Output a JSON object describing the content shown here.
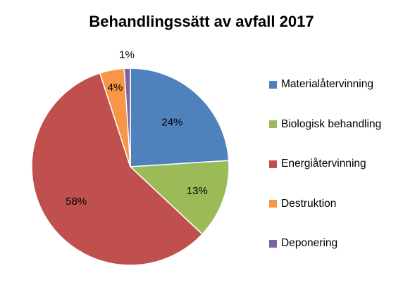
{
  "chart_data": {
    "type": "pie",
    "title": "Behandlingssätt av avfall 2017",
    "categories": [
      "Materialåtervinning",
      "Biologisk behandling",
      "Energiåtervinning",
      "Destruktion",
      "Deponering"
    ],
    "values": [
      24,
      13,
      58,
      4,
      1
    ],
    "labels": [
      "24%",
      "13%",
      "58%",
      "4%",
      "1%"
    ],
    "colors": [
      "#4F81BD",
      "#9BBB59",
      "#C0504D",
      "#F79646",
      "#8064A2"
    ],
    "legend_position": "right"
  }
}
